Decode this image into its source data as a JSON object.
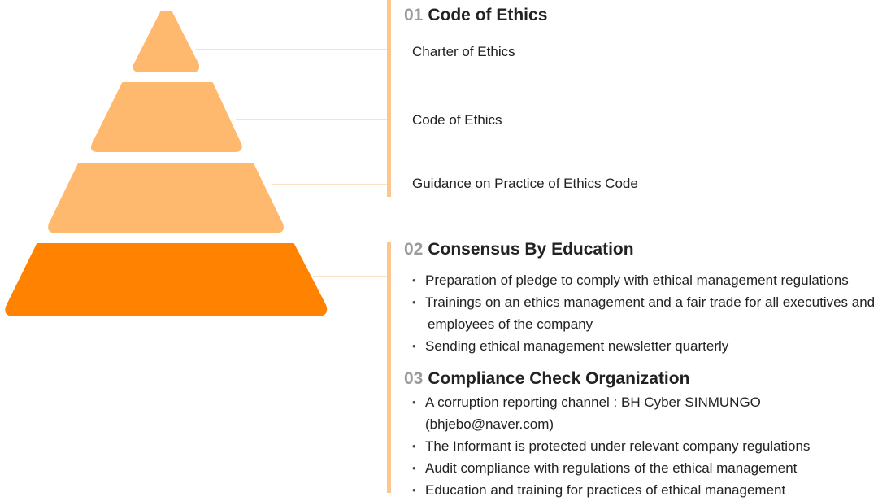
{
  "colors": {
    "pyramid_light": "#ffb96e",
    "pyramid_base": "#ff8300",
    "connector": "#fcd9b0",
    "bar": "#fcc68c",
    "number": "#9b9b9b"
  },
  "sections": [
    {
      "number": "01",
      "title": "Code of Ethics",
      "items": [
        "Charter of Ethics",
        "Code of Ethics",
        "Guidance on Practice of Ethics Code"
      ]
    },
    {
      "number": "02",
      "title": "Consensus By Education",
      "items": [
        [
          "Preparation of pledge to comply with ethical management regulations"
        ],
        [
          "Trainings on an ethics management and a fair trade for all executives and",
          "employees of the company"
        ],
        [
          "Sending ethical management newsletter quarterly"
        ]
      ]
    },
    {
      "number": "03",
      "title": "Compliance Check Organization",
      "items": [
        [
          "A corruption reporting channel : BH Cyber SINMUNGO",
          "(bhjebo@naver.com)"
        ],
        [
          "The Informant is protected under relevant company regulations"
        ],
        [
          "Audit compliance with regulations of the ethical management"
        ],
        [
          "Education and training for practices of ethical management"
        ]
      ]
    }
  ]
}
